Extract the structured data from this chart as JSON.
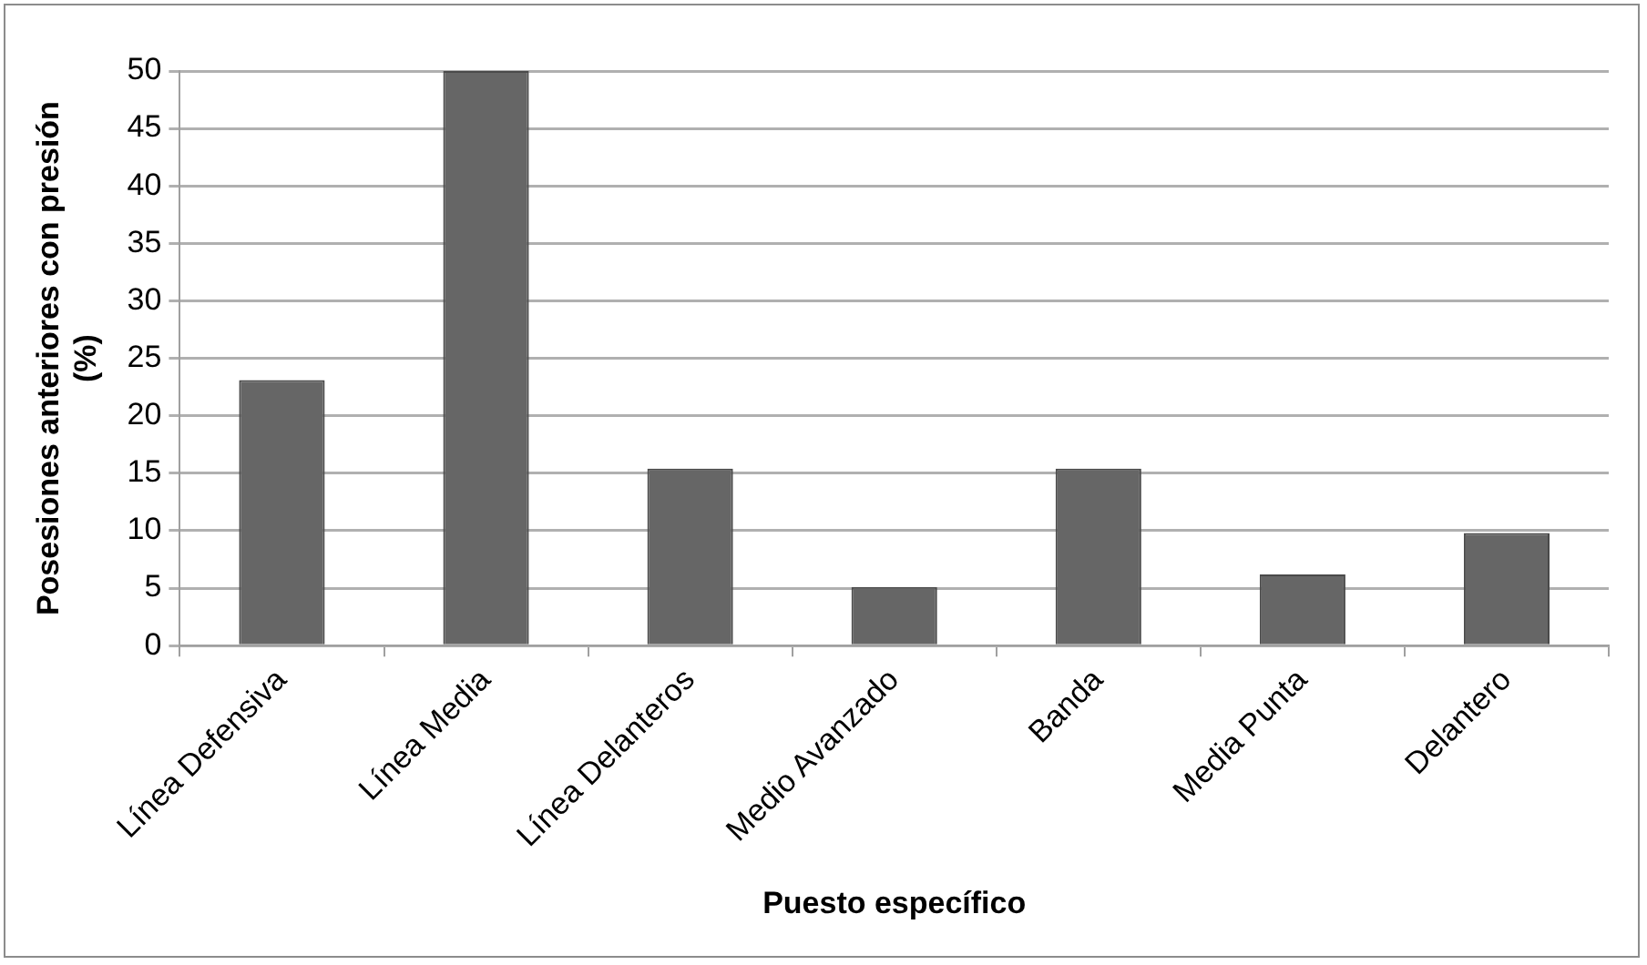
{
  "chart_data": {
    "type": "bar",
    "xlabel": "Puesto específico",
    "ylabel": "Posesiones anteriores con presión (%)",
    "categories": [
      "Línea Defensiva",
      "Línea Media",
      "Línea Delanteros",
      "Medio Avanzado",
      "Banda",
      "Media Punta",
      "Delantero"
    ],
    "values": [
      23.1,
      50,
      15.4,
      5.1,
      15.4,
      6.2,
      9.8
    ],
    "color": "#666666",
    "ylim": [
      0,
      50
    ],
    "yticks": [
      0,
      5,
      10,
      15,
      20,
      25,
      30,
      35,
      40,
      45,
      50
    ],
    "grid": "y",
    "legend": false
  }
}
